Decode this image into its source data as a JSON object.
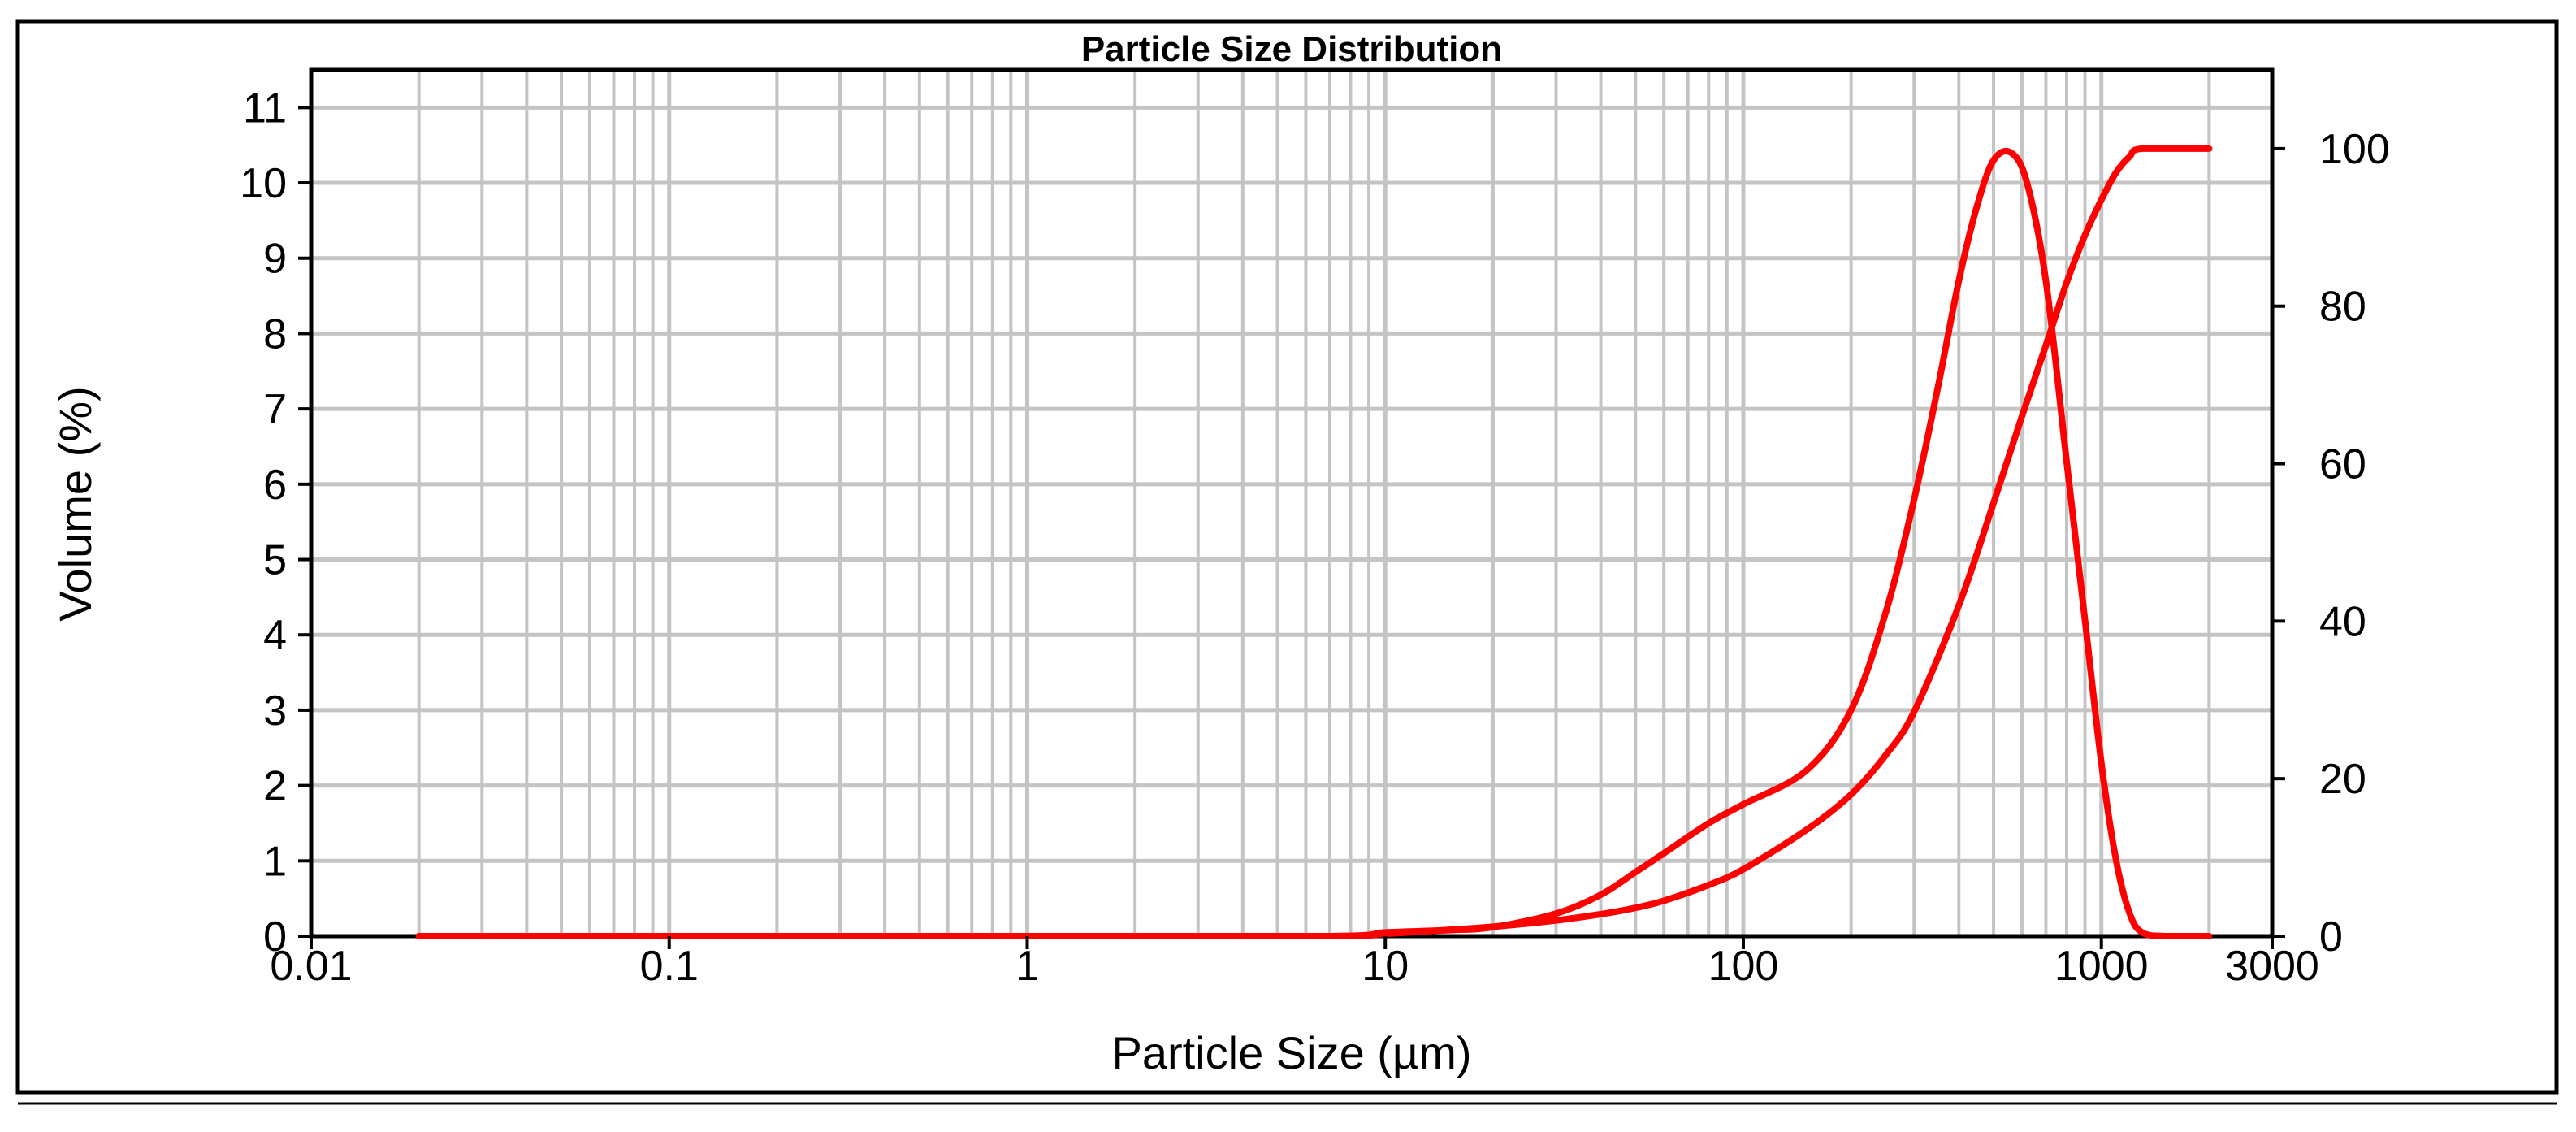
{
  "chart_data": {
    "type": "line",
    "title": "Particle Size Distribution",
    "xlabel": "Particle Size (µm)",
    "ylabel": "Volume (%)",
    "x_scale": "log",
    "xlim": [
      0.01,
      3000
    ],
    "ylim": [
      0,
      11.5
    ],
    "y2lim": [
      0,
      110
    ],
    "x_ticks": [
      0.01,
      0.1,
      1,
      10,
      100,
      1000,
      3000
    ],
    "x_tick_labels": [
      "0.01",
      "0.1",
      "1",
      "10",
      "100",
      "1000",
      "3000"
    ],
    "y_ticks": [
      0,
      1,
      2,
      3,
      4,
      5,
      6,
      7,
      8,
      9,
      10,
      11
    ],
    "y_tick_labels": [
      "0",
      "1",
      "2",
      "3",
      "4",
      "5",
      "6",
      "7",
      "8",
      "9",
      "10",
      "11"
    ],
    "y2_ticks": [
      0,
      20,
      40,
      60,
      80,
      100
    ],
    "y2_tick_labels": [
      "0",
      "20",
      "40",
      "60",
      "80",
      "100"
    ],
    "grid": true,
    "legend": "none",
    "line_color": "#ff0000",
    "series": [
      {
        "axis": "left",
        "x": [
          0.02,
          1,
          7,
          10,
          15,
          20,
          30,
          40,
          50,
          60,
          80,
          100,
          150,
          200,
          250,
          300,
          350,
          400,
          450,
          500,
          560,
          620,
          700,
          800,
          900,
          1000,
          1100,
          1200,
          1300,
          1500,
          2000
        ],
        "y": [
          0,
          0,
          0,
          0.05,
          0.08,
          0.12,
          0.3,
          0.55,
          0.85,
          1.1,
          1.5,
          1.75,
          2.2,
          3.0,
          4.3,
          5.8,
          7.3,
          8.7,
          9.7,
          10.3,
          10.4,
          10.0,
          8.7,
          6.3,
          4.2,
          2.3,
          1.0,
          0.3,
          0.05,
          0,
          0
        ]
      },
      {
        "axis": "right",
        "x": [
          0.02,
          1,
          7,
          10,
          15,
          20,
          30,
          40,
          50,
          60,
          80,
          100,
          150,
          200,
          250,
          300,
          400,
          500,
          600,
          700,
          800,
          900,
          1000,
          1100,
          1200,
          1300,
          2000
        ],
        "y": [
          0,
          0,
          0,
          0.3,
          0.8,
          1.2,
          2.0,
          2.8,
          3.6,
          4.5,
          6.5,
          8.5,
          13.5,
          18,
          23,
          28.5,
          42,
          55,
          66,
          75,
          83,
          89,
          93.5,
          97,
          99,
          100,
          100
        ]
      }
    ]
  }
}
